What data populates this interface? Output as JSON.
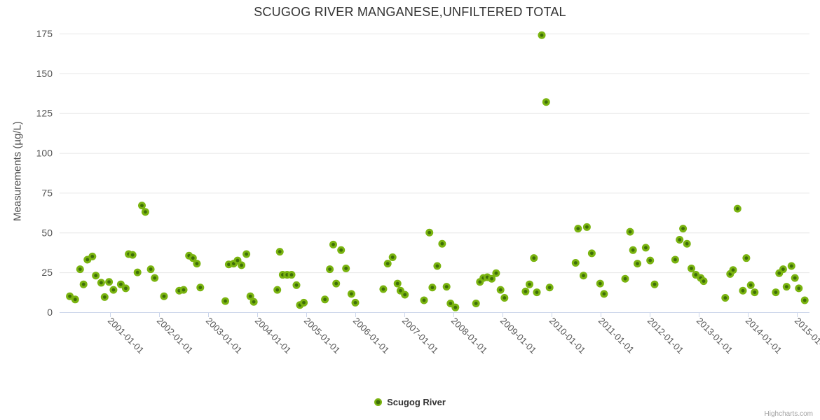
{
  "title": "SCUGOG RIVER MANGANESE,UNFILTERED TOTAL",
  "legend": {
    "items": [
      {
        "label": "Scugog River",
        "color": "#7ab410"
      }
    ]
  },
  "credits": "Highcharts.com",
  "colors": {
    "marker_outer": "#7ab410",
    "marker_inner": "#3e6e08",
    "grid_line": "#e6e6e6",
    "axis_line": "#ccd6eb",
    "tick_label": "#555555",
    "title_text": "#333333",
    "credits_text": "#a3a3a3"
  },
  "y_axis": {
    "title": "Measurements (µg/L)",
    "ticks": [
      0,
      25,
      50,
      75,
      100,
      125,
      150,
      175
    ]
  },
  "x_axis": {
    "ticks": [
      {
        "year": 2001,
        "label": "2001-01-01"
      },
      {
        "year": 2002,
        "label": "2002-01-01"
      },
      {
        "year": 2003,
        "label": "2003-01-01"
      },
      {
        "year": 2004,
        "label": "2004-01-01"
      },
      {
        "year": 2005,
        "label": "2005-01-01"
      },
      {
        "year": 2006,
        "label": "2006-01-01"
      },
      {
        "year": 2007,
        "label": "2007-01-01"
      },
      {
        "year": 2008,
        "label": "2008-01-01"
      },
      {
        "year": 2009,
        "label": "2009-01-01"
      },
      {
        "year": 2010,
        "label": "2010-01-01"
      },
      {
        "year": 2011,
        "label": "2011-01-01"
      },
      {
        "year": 2012,
        "label": "2012-01-01"
      },
      {
        "year": 2013,
        "label": "2013-01-01"
      },
      {
        "year": 2014,
        "label": "2014-01-01"
      },
      {
        "year": 2015,
        "label": "2015-01-01"
      }
    ]
  },
  "chart_data": {
    "type": "scatter",
    "title": "SCUGOG RIVER MANGANESE,UNFILTERED TOTAL",
    "xlabel": "",
    "ylabel": "Measurements (µg/L)",
    "xlim": [
      1999.97,
      2015.26
    ],
    "ylim": [
      0,
      175
    ],
    "grid": true,
    "legend_position": "bottom-center",
    "x_unit": "decimal_year",
    "series": [
      {
        "name": "Scugog River",
        "points": [
          [
            2000.18,
            10
          ],
          [
            2000.29,
            8
          ],
          [
            2000.39,
            27
          ],
          [
            2000.46,
            17.5
          ],
          [
            2000.54,
            33
          ],
          [
            2000.64,
            35
          ],
          [
            2000.71,
            23
          ],
          [
            2000.82,
            18.5
          ],
          [
            2000.89,
            9.5
          ],
          [
            2000.98,
            19
          ],
          [
            2001.07,
            14
          ],
          [
            2001.22,
            17.5
          ],
          [
            2001.32,
            15
          ],
          [
            2001.38,
            36.5
          ],
          [
            2001.46,
            36
          ],
          [
            2001.56,
            25
          ],
          [
            2001.65,
            67
          ],
          [
            2001.72,
            63
          ],
          [
            2001.83,
            27
          ],
          [
            2001.91,
            21.5
          ],
          [
            2002.1,
            10
          ],
          [
            2002.41,
            13.5
          ],
          [
            2002.5,
            14
          ],
          [
            2002.61,
            35.5
          ],
          [
            2002.69,
            34
          ],
          [
            2002.77,
            30.5
          ],
          [
            2002.84,
            15.5
          ],
          [
            2003.35,
            7
          ],
          [
            2003.42,
            30
          ],
          [
            2003.52,
            30.5
          ],
          [
            2003.6,
            32.5
          ],
          [
            2003.68,
            29.5
          ],
          [
            2003.78,
            36.5
          ],
          [
            2003.86,
            10
          ],
          [
            2003.93,
            6.5
          ],
          [
            2004.41,
            14
          ],
          [
            2004.46,
            38
          ],
          [
            2004.52,
            23.5
          ],
          [
            2004.61,
            23.5
          ],
          [
            2004.7,
            23.5
          ],
          [
            2004.8,
            17
          ],
          [
            2004.87,
            4.5
          ],
          [
            2004.95,
            6
          ],
          [
            2005.38,
            8
          ],
          [
            2005.48,
            27
          ],
          [
            2005.55,
            42.5
          ],
          [
            2005.61,
            18
          ],
          [
            2005.71,
            39
          ],
          [
            2005.81,
            27.5
          ],
          [
            2005.92,
            11.5
          ],
          [
            2006.0,
            6
          ],
          [
            2006.57,
            14.5
          ],
          [
            2006.66,
            30.5
          ],
          [
            2006.76,
            34.5
          ],
          [
            2006.86,
            18
          ],
          [
            2006.92,
            13.5
          ],
          [
            2007.01,
            11
          ],
          [
            2007.4,
            7.5
          ],
          [
            2007.51,
            50
          ],
          [
            2007.57,
            15.5
          ],
          [
            2007.67,
            29
          ],
          [
            2007.77,
            43
          ],
          [
            2007.86,
            16
          ],
          [
            2007.94,
            5.5
          ],
          [
            2008.04,
            3
          ],
          [
            2008.46,
            5.5
          ],
          [
            2008.54,
            19
          ],
          [
            2008.61,
            21.5
          ],
          [
            2008.69,
            22
          ],
          [
            2008.78,
            21
          ],
          [
            2008.87,
            24.5
          ],
          [
            2008.96,
            14
          ],
          [
            2009.04,
            9
          ],
          [
            2009.47,
            13
          ],
          [
            2009.55,
            17.5
          ],
          [
            2009.64,
            34
          ],
          [
            2009.7,
            12.5
          ],
          [
            2009.8,
            174
          ],
          [
            2009.89,
            132
          ],
          [
            2009.96,
            15.5
          ],
          [
            2010.49,
            31
          ],
          [
            2010.54,
            52.5
          ],
          [
            2010.65,
            23
          ],
          [
            2010.72,
            53.5
          ],
          [
            2010.82,
            37
          ],
          [
            2010.99,
            18
          ],
          [
            2011.07,
            11.5
          ],
          [
            2011.5,
            21
          ],
          [
            2011.6,
            50.5
          ],
          [
            2011.66,
            39
          ],
          [
            2011.75,
            30.5
          ],
          [
            2011.92,
            40.5
          ],
          [
            2012.01,
            32.5
          ],
          [
            2012.1,
            17.5
          ],
          [
            2012.52,
            33
          ],
          [
            2012.61,
            45.5
          ],
          [
            2012.68,
            52.5
          ],
          [
            2012.76,
            43
          ],
          [
            2012.85,
            27.5
          ],
          [
            2012.94,
            23.5
          ],
          [
            2013.04,
            21.5
          ],
          [
            2013.1,
            19.5
          ],
          [
            2013.54,
            9
          ],
          [
            2013.64,
            24
          ],
          [
            2013.7,
            26.5
          ],
          [
            2013.79,
            65
          ],
          [
            2013.9,
            13.5
          ],
          [
            2013.97,
            34
          ],
          [
            2014.06,
            17
          ],
          [
            2014.14,
            12.5
          ],
          [
            2014.57,
            12.5
          ],
          [
            2014.64,
            24.5
          ],
          [
            2014.72,
            27
          ],
          [
            2014.79,
            16
          ],
          [
            2014.89,
            29
          ],
          [
            2014.96,
            21.5
          ],
          [
            2015.04,
            15
          ],
          [
            2015.16,
            7.5
          ]
        ]
      }
    ]
  }
}
